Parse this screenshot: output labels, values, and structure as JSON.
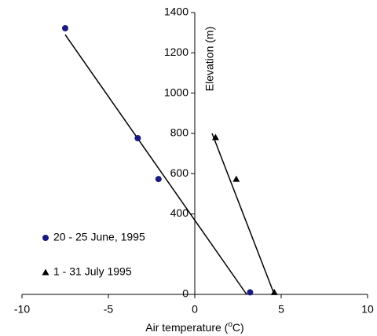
{
  "chart_data": {
    "type": "scatter",
    "x_label": [
      "Air temperature (",
      "o",
      "C)"
    ],
    "y_label": "Elevation (m)",
    "xlim": [
      -10,
      10
    ],
    "xticks": [
      -10,
      -5,
      0,
      5,
      10
    ],
    "ylim": [
      0,
      1400
    ],
    "yticks": [
      0,
      400,
      600,
      800,
      1000,
      1200,
      1400
    ],
    "legend": "lower left",
    "series": [
      {
        "name": "20 - 25 June, 1995",
        "color": "#1a1a80",
        "marker": "circle",
        "x": [
          -7.5,
          -3.3,
          -2.1,
          3.2
        ],
        "values": [
          1322,
          776,
          573,
          10
        ],
        "trend_x": [
          -7.5,
          3.0
        ],
        "trend_y": [
          1290,
          0
        ]
      },
      {
        "name": "1 - 31 July 1995",
        "color": "#000000",
        "marker": "triangle",
        "x": [
          1.2,
          2.4,
          4.6
        ],
        "values": [
          780,
          573,
          10
        ],
        "trend_x": [
          1.0,
          4.6
        ],
        "trend_y": [
          800,
          0
        ]
      }
    ]
  }
}
